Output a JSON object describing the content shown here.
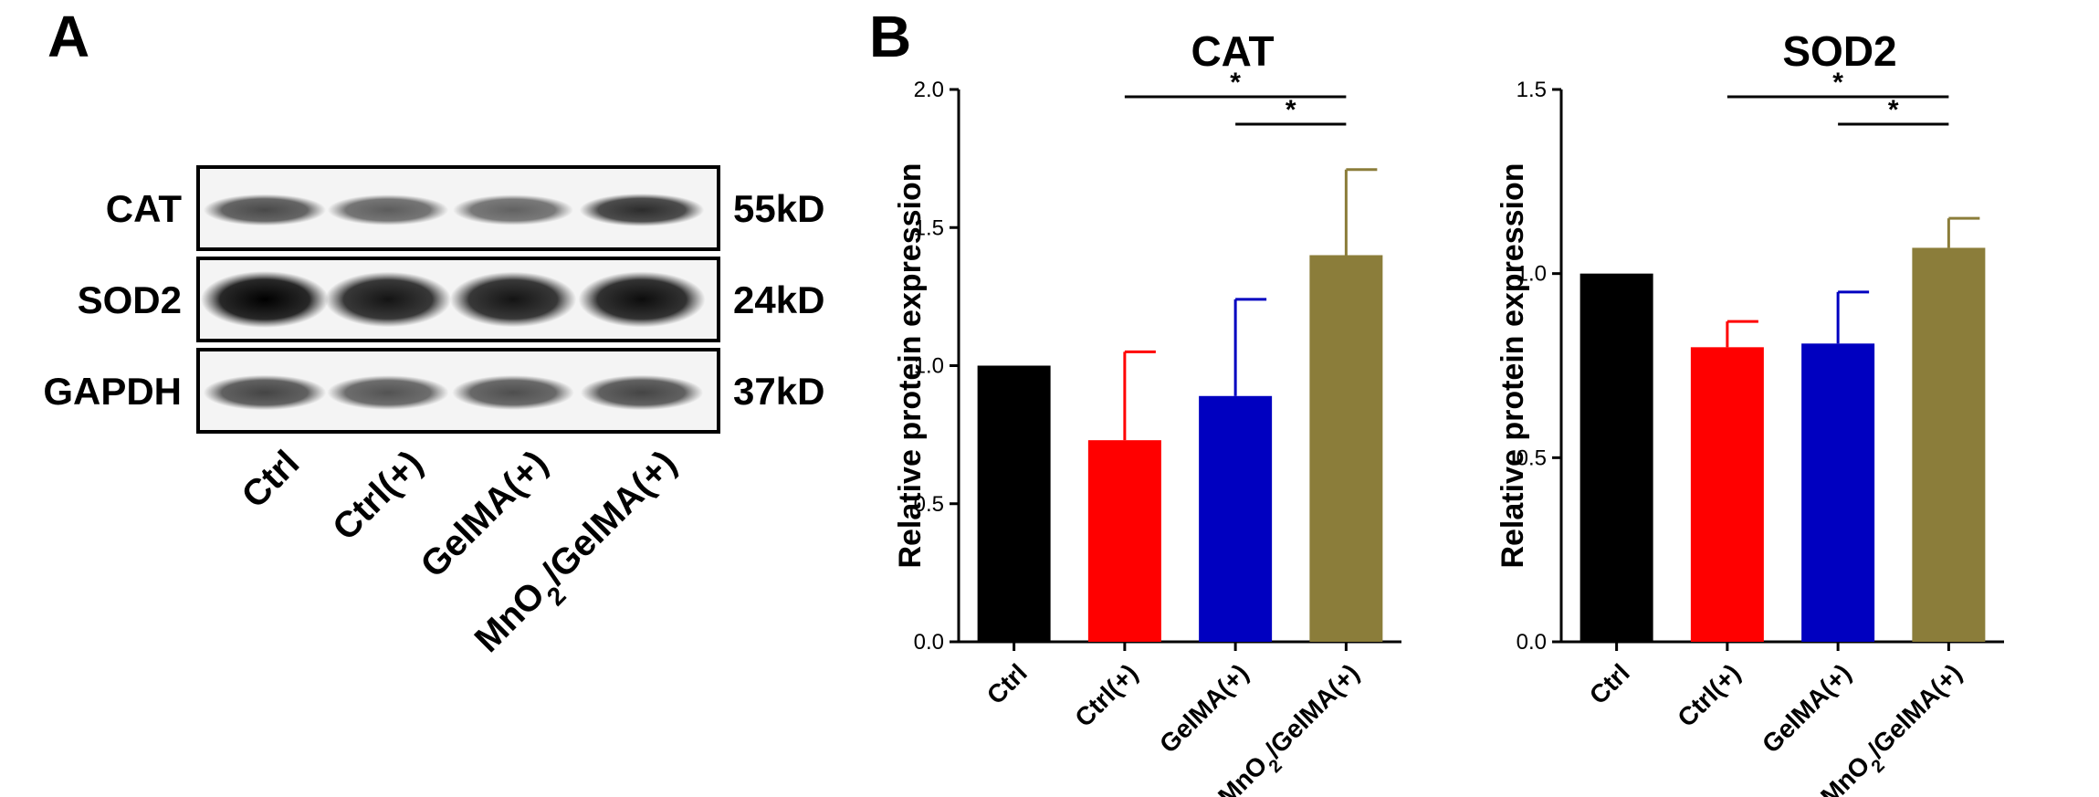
{
  "panels": {
    "a": {
      "label": "A"
    },
    "b": {
      "label": "B"
    }
  },
  "western_blot": {
    "rows": [
      {
        "protein": "CAT",
        "size": "55kD"
      },
      {
        "protein": "SOD2",
        "size": "24kD"
      },
      {
        "protein": "GAPDH",
        "size": "37kD"
      }
    ],
    "lanes": [
      "Ctrl",
      "Ctrl(+)",
      "GelMA(+)",
      "MnO2/GelMA(+)"
    ],
    "band_intensity": [
      [
        0.7,
        0.62,
        0.6,
        0.82
      ],
      [
        1.0,
        0.92,
        0.92,
        0.95
      ],
      [
        0.72,
        0.66,
        0.68,
        0.72
      ]
    ]
  },
  "colors": {
    "Ctrl": "#000000",
    "Ctrl(+)": "#ff0000",
    "GelMA(+)": "#0000c0",
    "MnO2/GelMA(+)": "#8b7d3a"
  },
  "chart_data": [
    {
      "type": "bar",
      "title": "CAT",
      "ylabel": "Relative protein expression",
      "xlabel": "",
      "categories": [
        "Ctrl",
        "Ctrl(+)",
        "GelMA(+)",
        "MnO2/GelMA(+)"
      ],
      "values": [
        1.0,
        0.73,
        0.89,
        1.4
      ],
      "errors": [
        0,
        0.32,
        0.35,
        0.31
      ],
      "ylim": [
        0,
        2.0
      ],
      "yticks": [
        "0.0",
        "0.5",
        "1.0",
        "1.5",
        "2.0"
      ],
      "significance": [
        {
          "from": "Ctrl(+)",
          "to": "MnO2/GelMA(+)",
          "label": "*"
        },
        {
          "from": "GelMA(+)",
          "to": "MnO2/GelMA(+)",
          "label": "*"
        }
      ]
    },
    {
      "type": "bar",
      "title": "SOD2",
      "ylabel": "Relative protein expression",
      "xlabel": "",
      "categories": [
        "Ctrl",
        "Ctrl(+)",
        "GelMA(+)",
        "MnO2/GelMA(+)"
      ],
      "values": [
        1.0,
        0.8,
        0.81,
        1.07
      ],
      "errors": [
        0,
        0.07,
        0.14,
        0.08
      ],
      "ylim": [
        0,
        1.5
      ],
      "yticks": [
        "0.0",
        "0.5",
        "1.0",
        "1.5"
      ],
      "significance": [
        {
          "from": "Ctrl(+)",
          "to": "MnO2/GelMA(+)",
          "label": "*"
        },
        {
          "from": "GelMA(+)",
          "to": "MnO2/GelMA(+)",
          "label": "*"
        }
      ]
    }
  ]
}
